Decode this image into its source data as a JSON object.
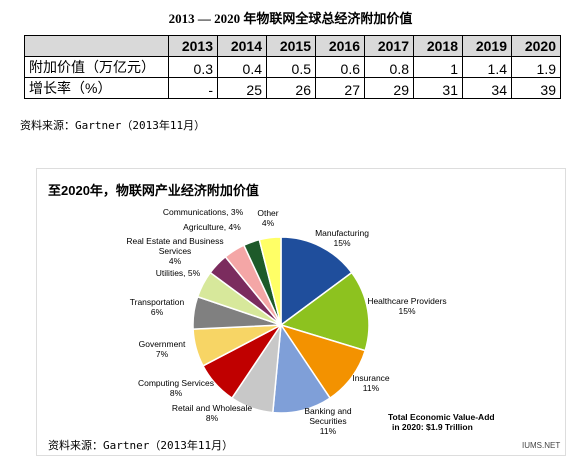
{
  "table": {
    "title": "2013 — 2020 年物联网全球总经济附加价值",
    "columns": [
      "2013",
      "2014",
      "2015",
      "2016",
      "2017",
      "2018",
      "2019",
      "2020"
    ],
    "rows": [
      {
        "label": "附加价值（万亿元）",
        "cells": [
          0.3,
          0.4,
          0.5,
          0.6,
          0.8,
          1,
          1.4,
          1.9
        ]
      },
      {
        "label": "增长率（%）",
        "cells": [
          "-",
          25,
          26,
          27,
          29,
          31,
          34,
          39
        ]
      }
    ],
    "source": "资料来源：Gartner（2013年11月）"
  },
  "chart_data": {
    "type": "pie",
    "title": "至2020年，物联网产业经济附加价值",
    "categories": [
      "Manufacturing",
      "Healthcare Providers",
      "Insurance",
      "Banking and Securities",
      "Retail and Wholesale",
      "Computing Services",
      "Government",
      "Transportation",
      "Utilities,",
      "Real Estate and Business Services",
      "Agriculture,",
      "Communications,",
      "Other"
    ],
    "values": [
      15,
      15,
      11,
      11,
      8,
      8,
      7,
      6,
      5,
      4,
      4,
      3,
      4
    ],
    "value_labels": [
      "15%",
      "15%",
      "11%",
      "11%",
      "8%",
      "8%",
      "7%",
      "6%",
      "5%",
      "4%",
      "4%",
      "3%",
      "4%"
    ],
    "colors": [
      "#1f4e9c",
      "#8dc21f",
      "#f39200",
      "#7f9fd8",
      "#c8c8c8",
      "#c00000",
      "#f7d565",
      "#808080",
      "#d7e89b",
      "#7b2c5e",
      "#f4a6a6",
      "#1e5a2a",
      "#ffff66"
    ],
    "annotation": [
      "Total Economic Value-Add",
      "in 2020: $1.9 Trillion"
    ],
    "source": "资料来源：Gartner（2013年11月）",
    "watermark": "IUMS.NET"
  }
}
